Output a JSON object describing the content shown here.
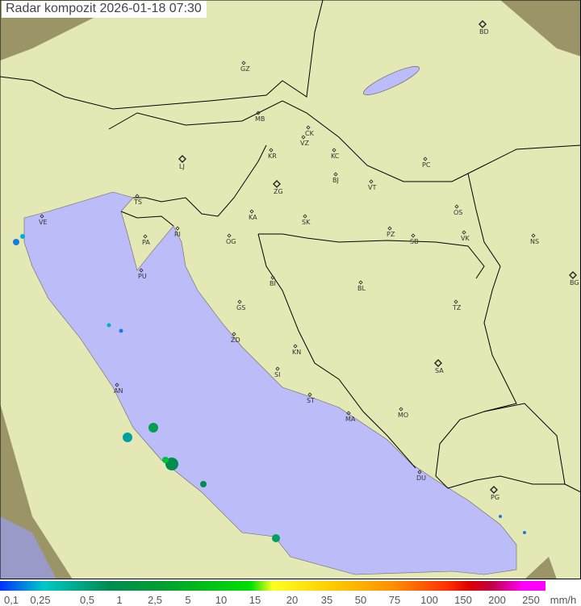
{
  "title": "Radar kompozit  2026-01-18   07:30",
  "legend": {
    "unit": "mm/h",
    "labels": [
      "0,1",
      "0,25",
      "0,5",
      "1",
      "2,5",
      "5",
      "10",
      "15",
      "20",
      "35",
      "50",
      "75",
      "100",
      "150",
      "200",
      "250"
    ]
  },
  "colors": {
    "sea": "#bcbcf8",
    "land": "#e4e8b4",
    "outside": "#9a9466",
    "border": "#000000"
  },
  "cities": [
    {
      "code": "GZ",
      "capital": false
    },
    {
      "code": "BD",
      "capital": true
    },
    {
      "code": "MB",
      "capital": false
    },
    {
      "code": "CK",
      "capital": false
    },
    {
      "code": "VZ",
      "capital": false
    },
    {
      "code": "KR",
      "capital": false
    },
    {
      "code": "KC",
      "capital": false
    },
    {
      "code": "PC",
      "capital": false
    },
    {
      "code": "LJ",
      "capital": true
    },
    {
      "code": "ZG",
      "capital": true
    },
    {
      "code": "BJ",
      "capital": false
    },
    {
      "code": "VT",
      "capital": false
    },
    {
      "code": "TS",
      "capital": false
    },
    {
      "code": "VE",
      "capital": false
    },
    {
      "code": "KA",
      "capital": false
    },
    {
      "code": "SK",
      "capital": false
    },
    {
      "code": "OS",
      "capital": false
    },
    {
      "code": "RI",
      "capital": false
    },
    {
      "code": "PA",
      "capital": false
    },
    {
      "code": "OG",
      "capital": false
    },
    {
      "code": "PZ",
      "capital": false
    },
    {
      "code": "SB",
      "capital": false
    },
    {
      "code": "VK",
      "capital": false
    },
    {
      "code": "NS",
      "capital": false
    },
    {
      "code": "PU",
      "capital": false
    },
    {
      "code": "BI",
      "capital": false
    },
    {
      "code": "BL",
      "capital": false
    },
    {
      "code": "BG",
      "capital": true
    },
    {
      "code": "GS",
      "capital": false
    },
    {
      "code": "TZ",
      "capital": false
    },
    {
      "code": "ZD",
      "capital": false
    },
    {
      "code": "KN",
      "capital": false
    },
    {
      "code": "SA",
      "capital": true
    },
    {
      "code": "AN",
      "capital": false
    },
    {
      "code": "SI",
      "capital": false
    },
    {
      "code": "ST",
      "capital": false
    },
    {
      "code": "MA",
      "capital": false
    },
    {
      "code": "MO",
      "capital": false
    },
    {
      "code": "DU",
      "capital": false
    },
    {
      "code": "PG",
      "capital": true
    }
  ]
}
